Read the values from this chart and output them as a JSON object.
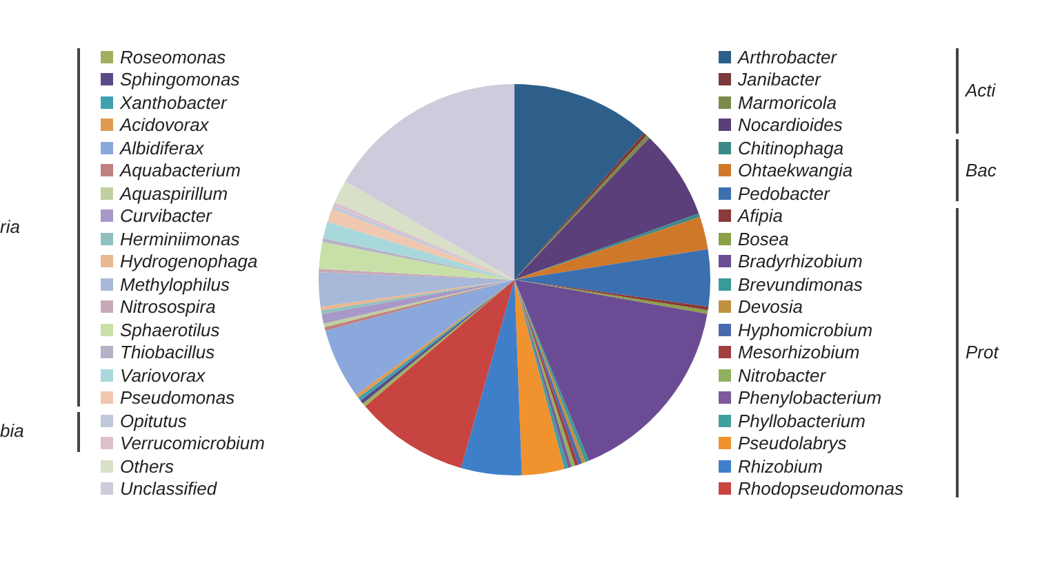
{
  "chart_data": {
    "type": "pie",
    "categories": [
      "Arthrobacter",
      "Janibacter",
      "Marmoricola",
      "Nocardioides",
      "Chitinophaga",
      "Ohtaekwangia",
      "Pedobacter",
      "Afipia",
      "Bosea",
      "Bradyrhizobium",
      "Brevundimonas",
      "Devosia",
      "Hyphomicrobium",
      "Mesorhizobium",
      "Nitrobacter",
      "Phenylobacterium",
      "Phyllobacterium",
      "Pseudolabrys",
      "Rhizobium",
      "Rhodopseudomonas",
      "Roseomonas",
      "Sphingomonas",
      "Xanthobacter",
      "Acidovorax",
      "Albidiferax",
      "Aquabacterium",
      "Aquaspirillum",
      "Curvibacter",
      "Herminiimonas",
      "Hydrogenophaga",
      "Methylophilus",
      "Nitrosospira",
      "Sphaerotilus",
      "Thiobacillus",
      "Variovorax",
      "Pseudomonas",
      "Opitutus",
      "Verrucomicrobium",
      "Others",
      "Unclassified"
    ],
    "values": [
      11.5,
      0.3,
      0.3,
      7.4,
      0.3,
      2.7,
      4.7,
      0.3,
      0.3,
      16.0,
      0.3,
      0.3,
      0.3,
      0.3,
      0.3,
      0.3,
      0.3,
      3.5,
      5.0,
      9.4,
      0.3,
      0.3,
      0.3,
      0.3,
      5.8,
      0.3,
      0.3,
      0.8,
      0.3,
      0.3,
      2.8,
      0.3,
      2.2,
      0.3,
      1.4,
      1.1,
      0.3,
      0.3,
      1.9,
      16.6
    ],
    "colors": [
      "#2e5f8a",
      "#7a3a3a",
      "#7a8a4a",
      "#5a3f7a",
      "#3a8a8a",
      "#d0782a",
      "#3a70b0",
      "#8a3a3a",
      "#8aa04a",
      "#6b4c94",
      "#3a9a9a",
      "#c09040",
      "#4a6ab0",
      "#a04040",
      "#90b060",
      "#7a5a9a",
      "#40a0a0",
      "#f0922e",
      "#3f7fca",
      "#c84440",
      "#a0b060",
      "#5a4a8a",
      "#40a0b0",
      "#e09a50",
      "#8aa8dc",
      "#c08080",
      "#c0cfa0",
      "#a898c8",
      "#90c0c0",
      "#e8b890",
      "#a8b8d8",
      "#c8a8b8",
      "#c8e0a8",
      "#b8b0c8",
      "#a8d8dc",
      "#f0c8b0",
      "#c0c8dc",
      "#dcc0cc",
      "#d8e0c8",
      "#cfcadc"
    ],
    "legend": "right",
    "annotations": [
      "ria",
      "bia",
      "Acti",
      "Bac",
      "Prot"
    ]
  }
}
